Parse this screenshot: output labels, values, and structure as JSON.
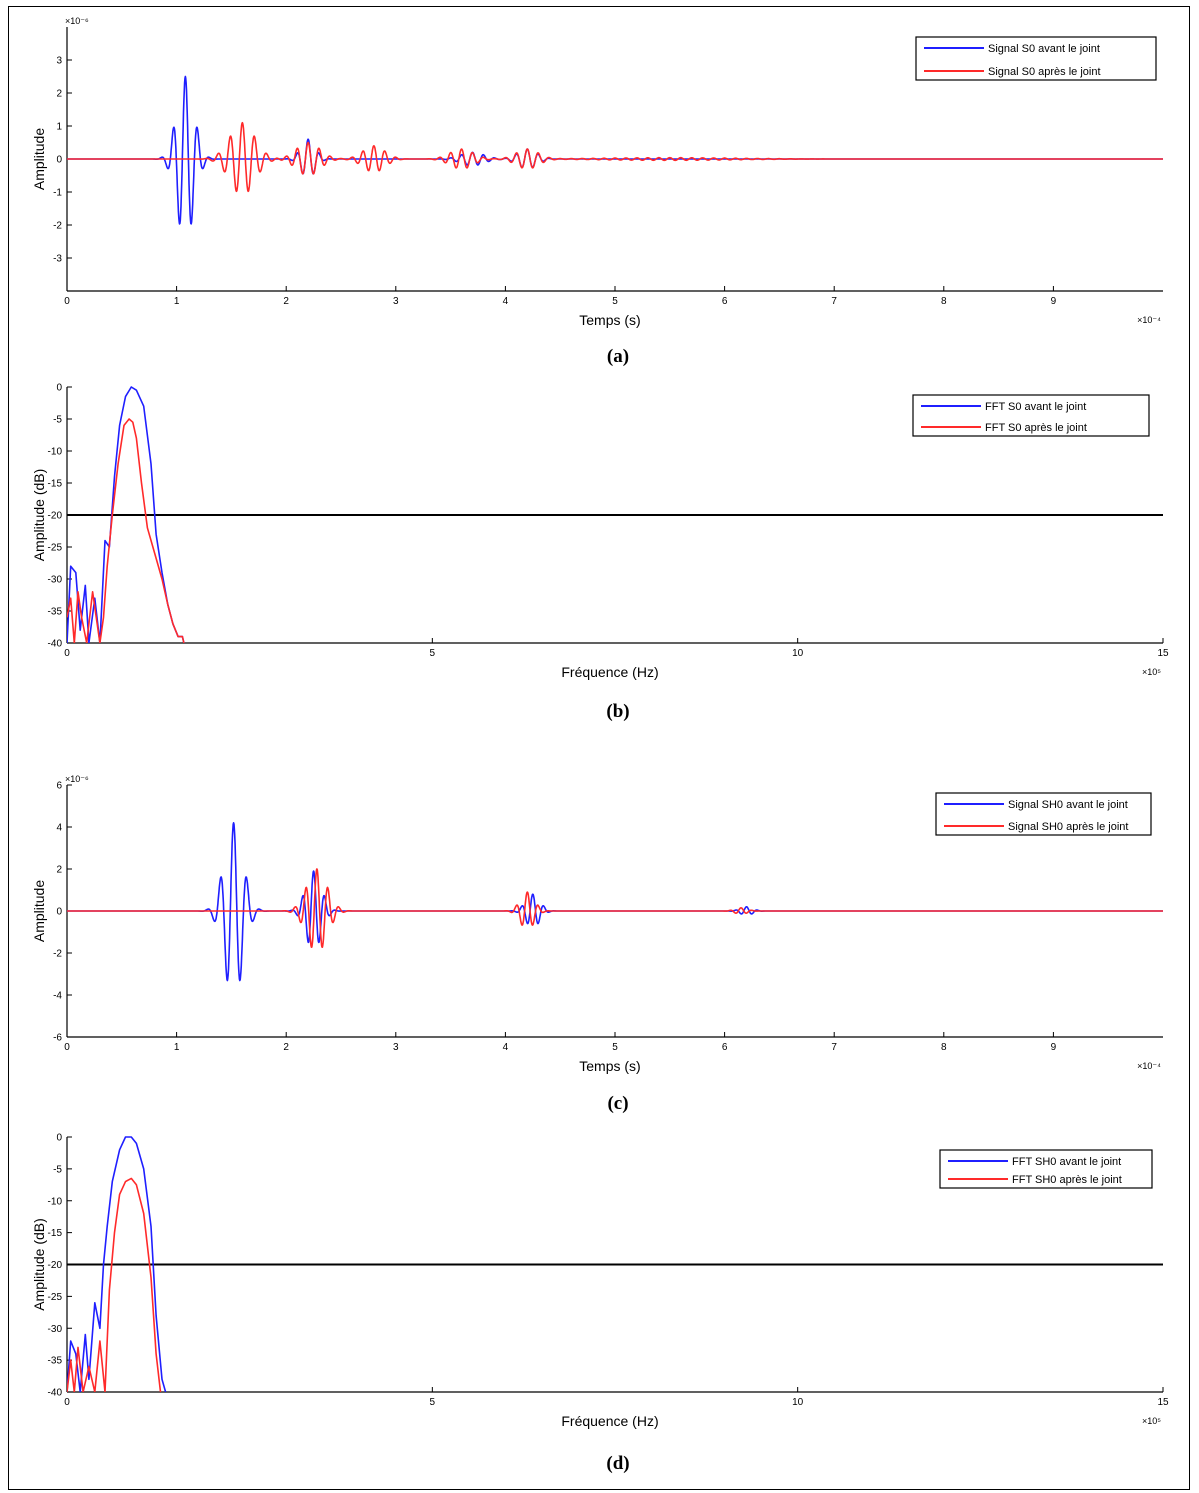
{
  "colors": {
    "series1": "#1f1fff",
    "series2": "#ff2a2a",
    "threshold": "#000000",
    "axis": "#000000"
  },
  "chart_data": [
    {
      "panel": "(a)",
      "type": "line",
      "xlabel": "Temps (s)",
      "ylabel": "Amplitude",
      "x_multiplier": "×10⁻⁴",
      "y_multiplier": "×10⁻⁶",
      "xlim": [
        0,
        10
      ],
      "ylim": [
        -4,
        4
      ],
      "xticks": [
        "0",
        "1",
        "2",
        "3",
        "4",
        "5",
        "6",
        "7",
        "8",
        "9"
      ],
      "yticks": [
        "3",
        "2",
        "1",
        "0",
        "-1",
        "-2",
        "-3"
      ],
      "legend_position": "top-right",
      "series": [
        {
          "name": "Signal S0 avant le joint",
          "color": "blue",
          "packets": [
            {
              "center": 1.08,
              "width": 0.11,
              "amplitude": 2.5,
              "period": 0.11
            },
            {
              "center": 2.2,
              "width": 0.09,
              "amplitude": 0.6,
              "period": 0.1
            },
            {
              "center": 3.7,
              "width": 0.15,
              "amplitude": 0.2,
              "period": 0.1
            },
            {
              "center": 4.2,
              "width": 0.12,
              "amplitude": 0.3,
              "period": 0.1
            }
          ]
        },
        {
          "name": "Signal S0 après le joint",
          "color": "red",
          "packets": [
            {
              "center": 1.6,
              "width": 0.16,
              "amplitude": 1.1,
              "period": 0.11
            },
            {
              "center": 2.2,
              "width": 0.15,
              "amplitude": 0.5,
              "period": 0.1
            },
            {
              "center": 2.8,
              "width": 0.14,
              "amplitude": 0.4,
              "period": 0.1
            },
            {
              "center": 3.6,
              "width": 0.15,
              "amplitude": 0.3,
              "period": 0.1
            },
            {
              "center": 4.2,
              "width": 0.14,
              "amplitude": 0.3,
              "period": 0.1
            },
            {
              "center": 5.5,
              "width": 0.8,
              "amplitude": 0.04,
              "period": 0.1
            }
          ]
        }
      ]
    },
    {
      "panel": "(b)",
      "type": "line",
      "xlabel": "Fréquence (Hz)",
      "ylabel": "Amplitude (dB)",
      "x_multiplier": "×10⁵",
      "xlim": [
        0,
        15
      ],
      "ylim": [
        -40,
        0
      ],
      "xticks": [
        "0",
        "5",
        "10",
        "15"
      ],
      "yticks": [
        "0",
        "-5",
        "-10",
        "-15",
        "-20",
        "-25",
        "-30",
        "-35",
        "-40"
      ],
      "threshold": -20,
      "legend_position": "top-right",
      "series": [
        {
          "name": "FFT S0 avant le joint",
          "color": "blue",
          "x": [
            0,
            0.05,
            0.12,
            0.18,
            0.25,
            0.3,
            0.38,
            0.45,
            0.52,
            0.58,
            0.65,
            0.72,
            0.8,
            0.88,
            0.95,
            1.05,
            1.15,
            1.22,
            1.3,
            1.38,
            1.45,
            1.52,
            1.58,
            1.6
          ],
          "y": [
            -40,
            -28,
            -29,
            -38,
            -31,
            -40,
            -33,
            -40,
            -24,
            -25,
            -14,
            -6,
            -1.5,
            0,
            -0.5,
            -3,
            -12,
            -23,
            -29,
            -34,
            -37,
            -39,
            -39,
            -40
          ]
        },
        {
          "name": "FFT S0 après le joint",
          "color": "red",
          "x": [
            0,
            0.05,
            0.1,
            0.15,
            0.2,
            0.27,
            0.35,
            0.45,
            0.5,
            0.55,
            0.62,
            0.7,
            0.78,
            0.85,
            0.9,
            0.95,
            1.02,
            1.1,
            1.2,
            1.3,
            1.38,
            1.45,
            1.52,
            1.58,
            1.6
          ],
          "y": [
            -36,
            -33,
            -40,
            -32,
            -36,
            -40,
            -32,
            -40,
            -36,
            -28,
            -20,
            -12,
            -6,
            -5,
            -5.5,
            -8,
            -15,
            -22,
            -26,
            -30,
            -34,
            -37,
            -39,
            -39,
            -40
          ]
        }
      ]
    },
    {
      "panel": "(c)",
      "type": "line",
      "xlabel": "Temps (s)",
      "ylabel": "Amplitude",
      "x_multiplier": "×10⁻⁴",
      "y_multiplier": "×10⁻⁶",
      "xlim": [
        0,
        10
      ],
      "ylim": [
        -6,
        6
      ],
      "xticks": [
        "0",
        "1",
        "2",
        "3",
        "4",
        "5",
        "6",
        "7",
        "8",
        "9"
      ],
      "yticks": [
        "6",
        "4",
        "2",
        "0",
        "-2",
        "-4",
        "-6"
      ],
      "legend_position": "top-right",
      "series": [
        {
          "name": "Signal SH0 avant le joint",
          "color": "blue",
          "packets": [
            {
              "center": 1.52,
              "width": 0.12,
              "amplitude": 4.2,
              "period": 0.12
            },
            {
              "center": 2.25,
              "width": 0.1,
              "amplitude": 1.9,
              "period": 0.1
            },
            {
              "center": 4.25,
              "width": 0.09,
              "amplitude": 0.8,
              "period": 0.1
            },
            {
              "center": 6.2,
              "width": 0.08,
              "amplitude": 0.2,
              "period": 0.1
            }
          ]
        },
        {
          "name": "Signal SH0 après le joint",
          "color": "red",
          "packets": [
            {
              "center": 2.28,
              "width": 0.13,
              "amplitude": 2.0,
              "period": 0.1
            },
            {
              "center": 4.2,
              "width": 0.09,
              "amplitude": 0.9,
              "period": 0.1
            },
            {
              "center": 6.15,
              "width": 0.08,
              "amplitude": 0.15,
              "period": 0.1
            }
          ]
        }
      ]
    },
    {
      "panel": "(d)",
      "type": "line",
      "xlabel": "Fréquence (Hz)",
      "ylabel": "Amplitude (dB)",
      "x_multiplier": "×10⁵",
      "xlim": [
        0,
        15
      ],
      "ylim": [
        -40,
        0
      ],
      "xticks": [
        "0",
        "5",
        "10",
        "15"
      ],
      "yticks": [
        "0",
        "-5",
        "-10",
        "-15",
        "-20",
        "-25",
        "-30",
        "-35",
        "-40"
      ],
      "threshold": -20,
      "legend_position": "top-right",
      "series": [
        {
          "name": "FFT SH0 avant le joint",
          "color": "blue",
          "x": [
            0,
            0.05,
            0.12,
            0.18,
            0.25,
            0.3,
            0.38,
            0.45,
            0.5,
            0.55,
            0.62,
            0.72,
            0.8,
            0.88,
            0.95,
            1.05,
            1.15,
            1.22,
            1.3,
            1.35
          ],
          "y": [
            -40,
            -32,
            -34,
            -40,
            -31,
            -38,
            -26,
            -30,
            -20,
            -14,
            -7,
            -2,
            0,
            0,
            -1,
            -5,
            -14,
            -28,
            -38,
            -40
          ]
        },
        {
          "name": "FFT SH0 après le joint",
          "color": "red",
          "x": [
            0,
            0.05,
            0.1,
            0.15,
            0.22,
            0.3,
            0.38,
            0.45,
            0.52,
            0.58,
            0.65,
            0.72,
            0.8,
            0.88,
            0.95,
            1.05,
            1.15,
            1.22,
            1.28
          ],
          "y": [
            -40,
            -35,
            -40,
            -33,
            -40,
            -36,
            -40,
            -32,
            -40,
            -24,
            -15,
            -9,
            -7,
            -6.5,
            -7.5,
            -12,
            -22,
            -34,
            -40
          ]
        }
      ]
    }
  ]
}
